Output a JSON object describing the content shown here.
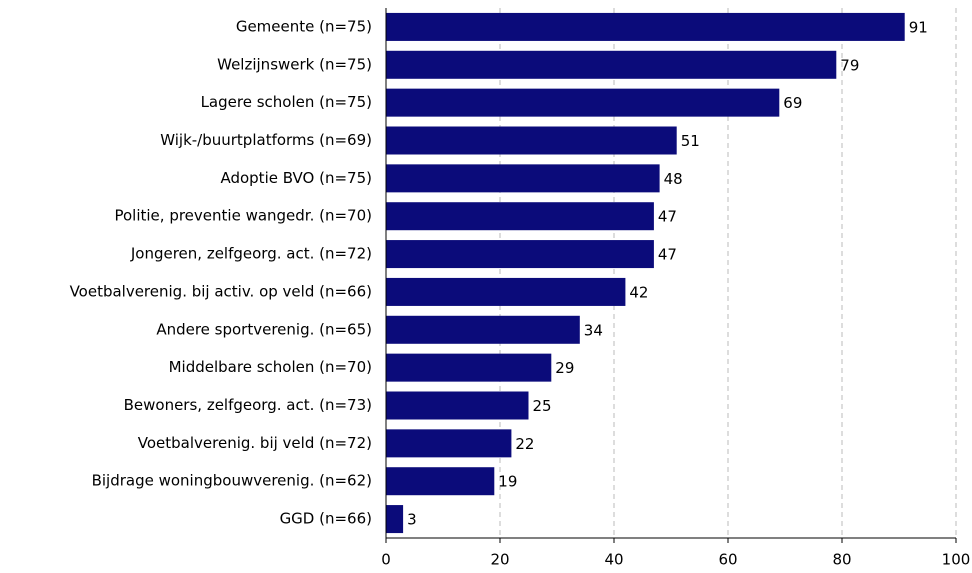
{
  "chart_data": {
    "type": "bar",
    "orientation": "horizontal",
    "categories": [
      "Gemeente (n=75)",
      "Welzijnswerk (n=75)",
      "Lagere scholen (n=75)",
      "Wijk-/buurtplatforms (n=69)",
      "Adoptie BVO (n=75)",
      "Politie, preventie wangedr. (n=70)",
      "Jongeren, zelfgeorg. act. (n=72)",
      "Voetbalverenig. bij activ. op veld (n=66)",
      "Andere sportverenig. (n=65)",
      "Middelbare scholen (n=70)",
      "Bewoners, zelfgeorg. act. (n=73)",
      "Voetbalverenig. bij veld (n=72)",
      "Bijdrage woningbouwverenig. (n=62)",
      "GGD (n=66)"
    ],
    "values": [
      91,
      79,
      69,
      51,
      48,
      47,
      47,
      42,
      34,
      29,
      25,
      22,
      19,
      3
    ],
    "color": "#0b0b7a",
    "xlim": [
      0,
      100
    ],
    "xticks": [
      0,
      20,
      40,
      60,
      80,
      100
    ],
    "grid": true
  }
}
